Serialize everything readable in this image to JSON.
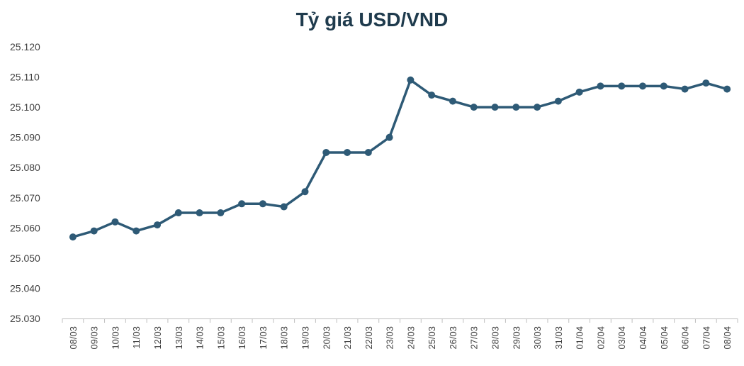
{
  "chart_data": {
    "type": "line",
    "title": "Tỷ giá USD/VND",
    "xlabel": "",
    "ylabel": "",
    "ylim": [
      25030,
      25120
    ],
    "ytick_step": 10,
    "ytick_labels": [
      "25.030",
      "25.040",
      "25.050",
      "25.060",
      "25.070",
      "25.080",
      "25.090",
      "25.100",
      "25.110",
      "25.120"
    ],
    "grid": false,
    "line_color": "#2e5a76",
    "categories": [
      "08/03",
      "09/03",
      "10/03",
      "11/03",
      "12/03",
      "13/03",
      "14/03",
      "15/03",
      "16/03",
      "17/03",
      "18/03",
      "19/03",
      "20/03",
      "21/03",
      "22/03",
      "23/03",
      "24/03",
      "25/03",
      "26/03",
      "27/03",
      "28/03",
      "29/03",
      "30/03",
      "31/03",
      "01/04",
      "02/04",
      "03/04",
      "04/04",
      "05/04",
      "06/04",
      "07/04",
      "08/04"
    ],
    "series": [
      {
        "name": "USD/VND",
        "values": [
          25057,
          25059,
          25062,
          25059,
          25061,
          25065,
          25065,
          25065,
          25068,
          25068,
          25067,
          25072,
          25085,
          25085,
          25085,
          25090,
          25109,
          25104,
          25102,
          25100,
          25100,
          25100,
          25100,
          25102,
          25105,
          25107,
          25107,
          25107,
          25107,
          25106,
          25108,
          25106
        ]
      }
    ]
  }
}
